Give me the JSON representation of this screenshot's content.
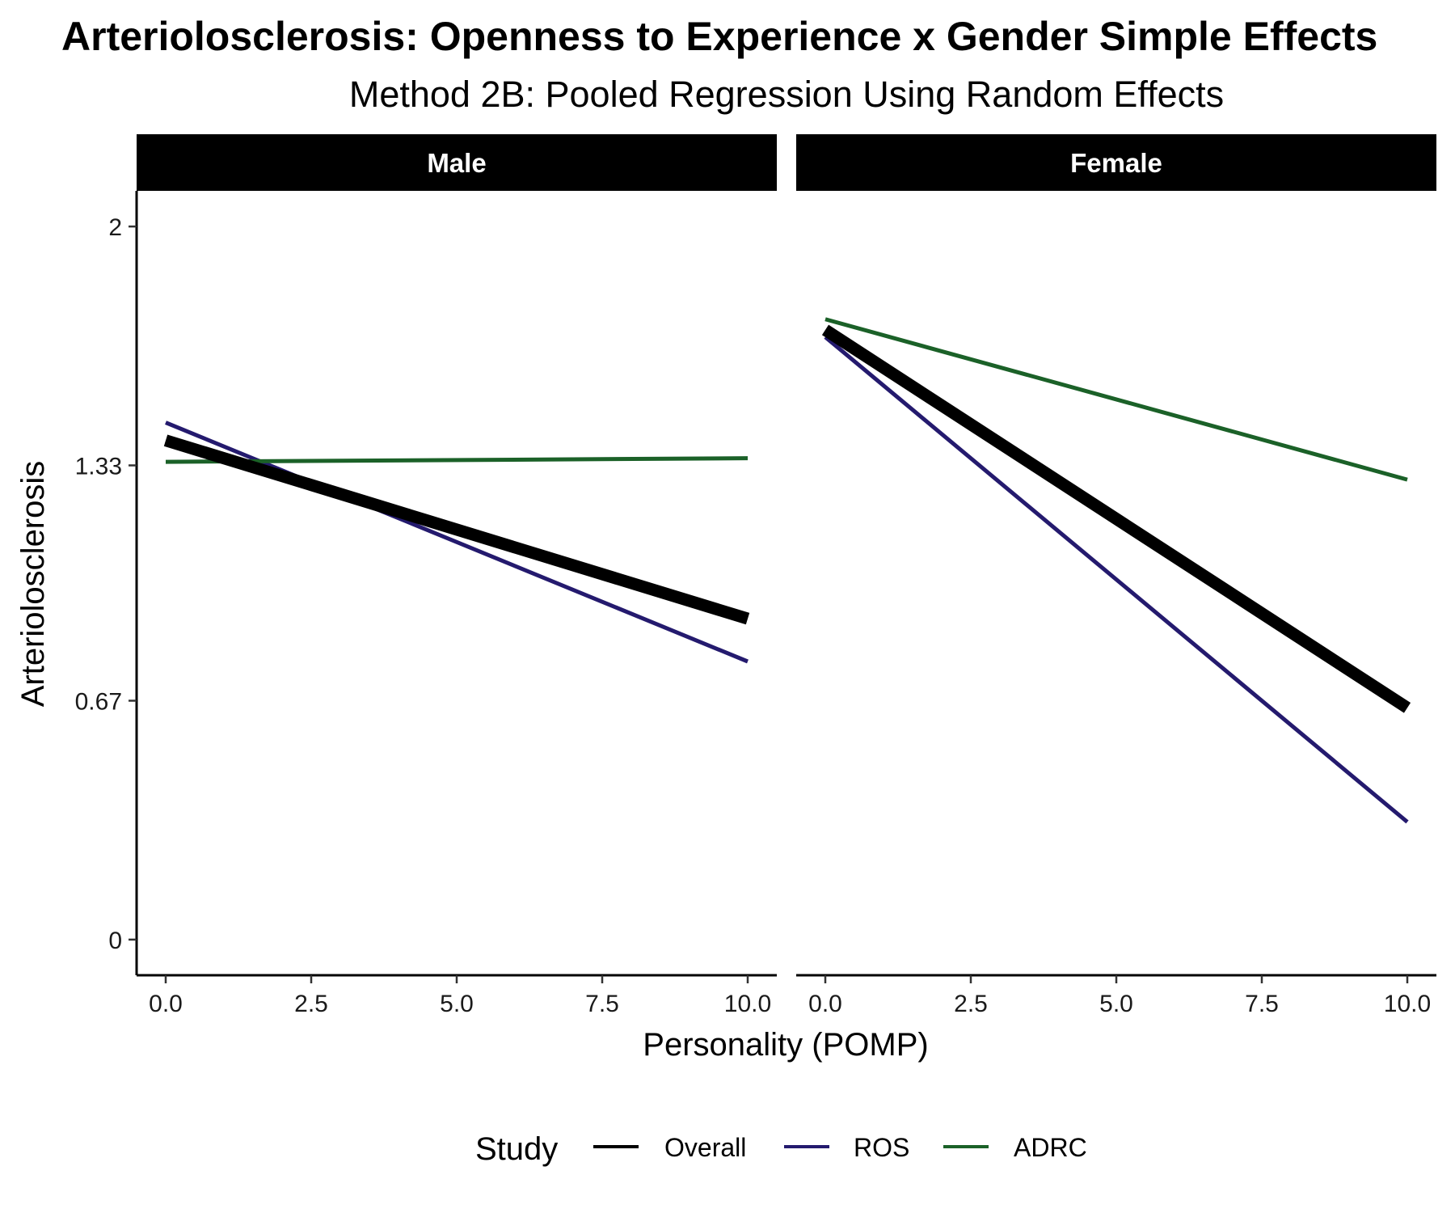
{
  "chart_data": {
    "type": "line",
    "title": "Arteriolosclerosis: Openness to Experience x Gender Simple Effects",
    "subtitle": "Method 2B: Pooled Regression Using Random Effects",
    "xlabel": "Personality (POMP)",
    "ylabel": "Arteriolosclerosis",
    "xlim": [
      -0.5,
      10.5
    ],
    "ylim": [
      -0.1,
      2.1
    ],
    "x_ticks": [
      0,
      2.5,
      5,
      7.5,
      10
    ],
    "x_tick_labels": [
      "0.0",
      "2.5",
      "5.0",
      "7.5",
      "10.0"
    ],
    "y_ticks": [
      0,
      0.67,
      1.33,
      2
    ],
    "y_tick_labels": [
      "0",
      "0.67",
      "1.33",
      "2"
    ],
    "grid": false,
    "legend": {
      "title": "Study",
      "position": "bottom",
      "entries": [
        {
          "label": "Overall",
          "color": "#000000"
        },
        {
          "label": "ROS",
          "color": "#241a6e"
        },
        {
          "label": "ADRC",
          "color": "#1b6128"
        }
      ]
    },
    "panels": [
      {
        "label": "Male",
        "series": [
          {
            "name": "Overall",
            "x": [
              0,
              10
            ],
            "y": [
              1.4,
              0.9
            ]
          },
          {
            "name": "ROS",
            "x": [
              0,
              10
            ],
            "y": [
              1.45,
              0.78
            ]
          },
          {
            "name": "ADRC",
            "x": [
              0,
              10
            ],
            "y": [
              1.34,
              1.35
            ]
          }
        ]
      },
      {
        "label": "Female",
        "series": [
          {
            "name": "Overall",
            "x": [
              0,
              10
            ],
            "y": [
              1.71,
              0.65
            ]
          },
          {
            "name": "ROS",
            "x": [
              0,
              10
            ],
            "y": [
              1.69,
              0.33
            ]
          },
          {
            "name": "ADRC",
            "x": [
              0,
              10
            ],
            "y": [
              1.74,
              1.29
            ]
          }
        ]
      }
    ]
  }
}
